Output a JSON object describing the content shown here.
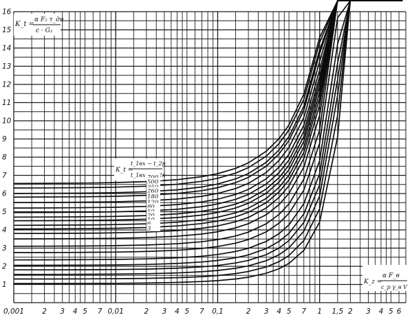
{
  "chart_data": {
    "type": "line",
    "x_scale": "log",
    "y_scale": "linear",
    "xlim": [
      0.001,
      7
    ],
    "ylim": [
      0,
      16
    ],
    "grid": true,
    "x_tick_labels": [
      {
        "value": 0.001,
        "label": "0,001"
      },
      {
        "value": 0.002,
        "label": "2"
      },
      {
        "value": 0.003,
        "label": "3"
      },
      {
        "value": 0.004,
        "label": "4"
      },
      {
        "value": 0.005,
        "label": "5"
      },
      {
        "value": 0.007,
        "label": "7"
      },
      {
        "value": 0.01,
        "label": "0,01"
      },
      {
        "value": 0.02,
        "label": "2"
      },
      {
        "value": 0.03,
        "label": "3"
      },
      {
        "value": 0.04,
        "label": "4"
      },
      {
        "value": 0.05,
        "label": "5"
      },
      {
        "value": 0.07,
        "label": "7"
      },
      {
        "value": 0.1,
        "label": "0,1"
      },
      {
        "value": 0.2,
        "label": "2"
      },
      {
        "value": 0.3,
        "label": "3"
      },
      {
        "value": 0.4,
        "label": "4"
      },
      {
        "value": 0.5,
        "label": "5"
      },
      {
        "value": 0.7,
        "label": "7"
      },
      {
        "value": 1,
        "label": "1"
      },
      {
        "value": 1.5,
        "label": "1,5"
      },
      {
        "value": 2,
        "label": "2"
      },
      {
        "value": 3,
        "label": "3"
      },
      {
        "value": 4,
        "label": "4"
      },
      {
        "value": 5,
        "label": "5"
      },
      {
        "value": 6,
        "label": "6"
      }
    ],
    "y_tick_labels": [
      "1",
      "2",
      "3",
      "4",
      "5",
      "6",
      "7",
      "8",
      "9",
      "10",
      "11",
      "12",
      "13",
      "14",
      "15",
      "16"
    ],
    "y_axis_formula": {
      "lhs": "K_t =",
      "numerator": "α F₂ τ_дн",
      "denominator": "c · G₂"
    },
    "x_axis_formula": {
      "lhs": "K_z =",
      "numerator": "α F_в",
      "denominator": "c_p γ_в V"
    },
    "curve_param_formula": {
      "lhs": "K_t =",
      "numerator": "t_1вх − t_2н",
      "denominator": "t_1вх − t_2к"
    },
    "curve_labels": [
      "700",
      "500",
      "350",
      "260",
      "180",
      "120",
      "80",
      "50",
      "20",
      "10",
      "6",
      "3"
    ],
    "series": [
      {
        "start": 6.55,
        "k": 0.8
      },
      {
        "start": 6.3,
        "k": 0.82
      },
      {
        "start": 6.0,
        "k": 0.84
      },
      {
        "start": 5.8,
        "k": 0.86
      },
      {
        "start": 5.5,
        "k": 0.88
      },
      {
        "start": 5.2,
        "k": 0.9
      },
      {
        "start": 4.95,
        "k": 0.92
      },
      {
        "start": 4.7,
        "k": 0.95
      },
      {
        "start": 4.5,
        "k": 0.97
      },
      {
        "start": 4.25,
        "k": 1.0
      },
      {
        "start": 4.05,
        "k": 1.02
      },
      {
        "start": 3.8,
        "k": 1.05
      },
      {
        "start": 3.5,
        "k": 1.08
      },
      {
        "start": 3.1,
        "k": 1.12
      },
      {
        "start": 2.75,
        "k": 1.16
      },
      {
        "start": 2.35,
        "k": 1.2
      },
      {
        "start": 2.05,
        "k": 1.24
      },
      {
        "start": 1.8,
        "k": 1.28
      },
      {
        "start": 1.55,
        "k": 1.33
      },
      {
        "start": 1.3,
        "k": 1.38
      },
      {
        "start": 1.05,
        "k": 1.44
      }
    ],
    "x": [
      0.001,
      0.002,
      0.004,
      0.007,
      0.01,
      0.02,
      0.04,
      0.07,
      0.1,
      0.15,
      0.2,
      0.3,
      0.4,
      0.5,
      0.7,
      1,
      1.5,
      2,
      2.5,
      3,
      3.5,
      4,
      4.5,
      5,
      5.5,
      6,
      6.5
    ]
  }
}
